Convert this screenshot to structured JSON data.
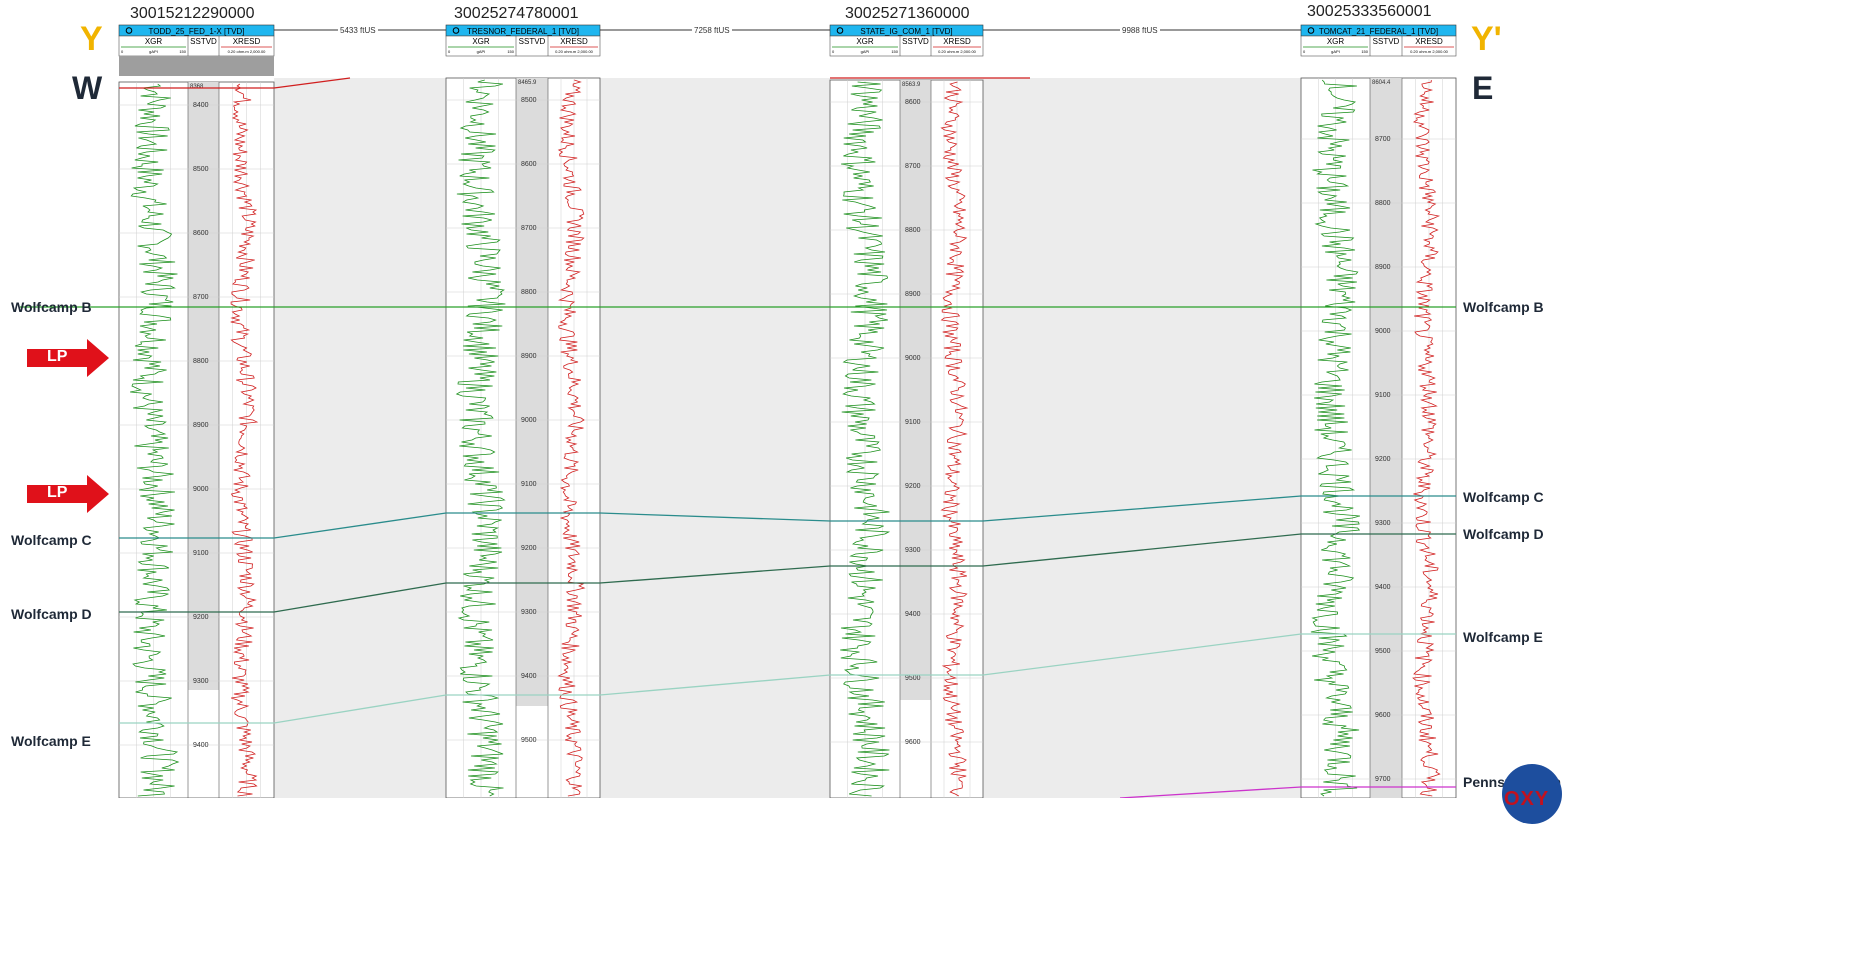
{
  "section": {
    "left_letter": "Y",
    "right_letter": "Y'",
    "left_dir": "W",
    "right_dir": "E",
    "lp_label": "LP",
    "logo_text": "OXY"
  },
  "wells": [
    {
      "api": "30015212290000",
      "name": "TODD_25_FED_1-X [TVD]",
      "icon": "gas-well-icon",
      "sstvd_top": "8368",
      "ticks": [
        "8400",
        "8500",
        "8600",
        "8700",
        "8800",
        "8900",
        "9000",
        "9100",
        "9200",
        "9300",
        "9400"
      ]
    },
    {
      "api": "30025274780001",
      "name": "TRESNOR_FEDERAL_1 [TVD]",
      "icon": "oil-well-icon",
      "sstvd_top": "8465.9",
      "ticks": [
        "8500",
        "8600",
        "8700",
        "8800",
        "8900",
        "9000",
        "9100",
        "9200",
        "9300",
        "9400",
        "9500",
        "9600"
      ]
    },
    {
      "api": "30025271360000",
      "name": "STATE_IG_COM_1 [TVD]",
      "icon": "gas-well-icon",
      "sstvd_top": "8563.9",
      "ticks": [
        "8600",
        "8700",
        "8800",
        "8900",
        "9000",
        "9100",
        "9200",
        "9300",
        "9400",
        "9500",
        "9600"
      ]
    },
    {
      "api": "30025333560001",
      "name": "TOMCAT_21_FEDERAL_1 [TVD]",
      "icon": "oil-gas-well-icon",
      "sstvd_top": "8604.4",
      "ticks": [
        "8700",
        "8800",
        "8900",
        "9000",
        "9100",
        "9200",
        "9300",
        "9400",
        "9500",
        "9600",
        "9700"
      ]
    }
  ],
  "track_headers": {
    "gr": "XGR",
    "depth": "SSTVD",
    "res": "XRESD",
    "gr_unit": "gAPI",
    "gr_min": "0",
    "gr_max": "150",
    "res_scale": "0.20 ohm.m 2,000.00"
  },
  "distances": [
    "5433 ftUS",
    "7258 ftUS",
    "9988 ftUS"
  ],
  "formations": [
    {
      "name": "Wolfcamp B",
      "color": "#2aa02a"
    },
    {
      "name": "Wolfcamp C",
      "color": "#2a8c8c"
    },
    {
      "name": "Wolfcamp D",
      "color": "#2f6b4f"
    },
    {
      "name": "Wolfcamp E",
      "color": "#9ad3c2"
    },
    {
      "name": "Pennsylvanian",
      "color": "#cc33cc"
    }
  ],
  "colors": {
    "gr_curve": "#1b8f1b",
    "res_curve": "#d11f1f",
    "header_bar": "#1fb6ef",
    "depth_track": "#dcdcdc"
  }
}
